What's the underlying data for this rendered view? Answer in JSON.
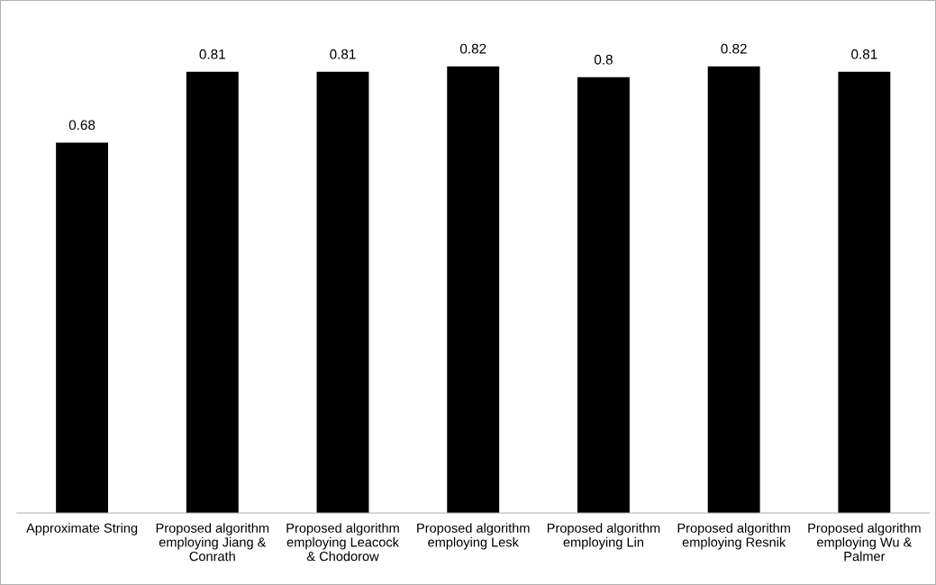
{
  "chart_data": {
    "type": "bar",
    "categories": [
      "Approximate String",
      "Proposed algorithm\nemploying Jiang &\nConrath",
      "Proposed algorithm\nemploying Leacock\n& Chodorow",
      "Proposed algorithm\nemploying Lesk",
      "Proposed algorithm\nemploying Lin",
      "Proposed algorithm\nemploying Resnik",
      "Proposed algorithm\nemploying Wu &\nPalmer"
    ],
    "values": [
      0.68,
      0.81,
      0.81,
      0.82,
      0.8,
      0.82,
      0.81
    ],
    "color": "#000000",
    "tick_labels": "x",
    "data_labels": true,
    "grid": false,
    "legend": false
  }
}
